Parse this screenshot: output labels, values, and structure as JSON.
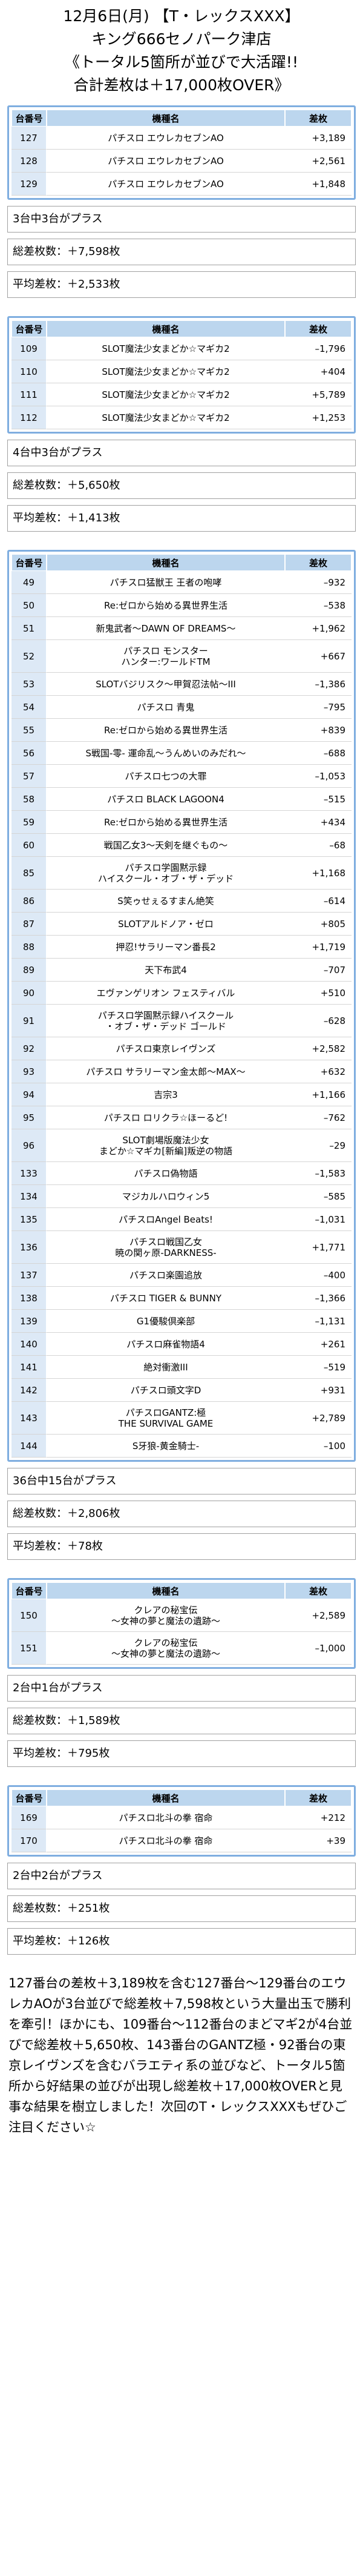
{
  "header": {
    "line1": "12月6日(月) 【T・レックスXXX】",
    "line2": "キング666セノパーク津店",
    "line3": "《トータル5箇所が並びで大活躍!!",
    "line4": "合計差枚は＋17,000枚OVER》"
  },
  "columns": {
    "num": "台番号",
    "name": "機種名",
    "diff": "差枚"
  },
  "sections": [
    {
      "rows": [
        {
          "num": "127",
          "name": "パチスロ エウレカセブンAO",
          "diff": "+3,189"
        },
        {
          "num": "128",
          "name": "パチスロ エウレカセブンAO",
          "diff": "+2,561"
        },
        {
          "num": "129",
          "name": "パチスロ エウレカセブンAO",
          "diff": "+1,848"
        }
      ],
      "plus_count": "3台中3台がプラス",
      "total": "総差枚数：＋7,598枚",
      "average": "平均差枚：＋2,533枚"
    },
    {
      "rows": [
        {
          "num": "109",
          "name": "SLOT魔法少女まどか☆マギカ2",
          "diff": "–1,796"
        },
        {
          "num": "110",
          "name": "SLOT魔法少女まどか☆マギカ2",
          "diff": "+404"
        },
        {
          "num": "111",
          "name": "SLOT魔法少女まどか☆マギカ2",
          "diff": "+5,789"
        },
        {
          "num": "112",
          "name": "SLOT魔法少女まどか☆マギカ2",
          "diff": "+1,253"
        }
      ],
      "plus_count": "4台中3台がプラス",
      "total": "総差枚数：＋5,650枚",
      "average": "平均差枚：＋1,413枚"
    },
    {
      "rows": [
        {
          "num": "49",
          "name": "パチスロ猛獣王 王者の咆哮",
          "diff": "–932"
        },
        {
          "num": "50",
          "name": "Re:ゼロから始める異世界生活",
          "diff": "–538"
        },
        {
          "num": "51",
          "name": "新鬼武者〜DAWN OF DREAMS〜",
          "diff": "+1,962"
        },
        {
          "num": "52",
          "name": "パチスロ モンスター\nハンター:ワールドTM",
          "diff": "+667"
        },
        {
          "num": "53",
          "name": "SLOTバジリスク〜甲賀忍法帖〜III",
          "diff": "–1,386"
        },
        {
          "num": "54",
          "name": "パチスロ 青鬼",
          "diff": "–795"
        },
        {
          "num": "55",
          "name": "Re:ゼロから始める異世界生活",
          "diff": "+839"
        },
        {
          "num": "56",
          "name": "S戦国-零- 運命乱〜うんめいのみだれ〜",
          "diff": "–688"
        },
        {
          "num": "57",
          "name": "パチスロ七つの大罪",
          "diff": "–1,053"
        },
        {
          "num": "58",
          "name": "パチスロ BLACK LAGOON4",
          "diff": "–515"
        },
        {
          "num": "59",
          "name": "Re:ゼロから始める異世界生活",
          "diff": "+434"
        },
        {
          "num": "60",
          "name": "戦国乙女3〜天剣を継ぐもの〜",
          "diff": "–68"
        },
        {
          "num": "85",
          "name": "パチスロ学園黙示録\nハイスクール・オブ・ザ・デッド",
          "diff": "+1,168"
        },
        {
          "num": "86",
          "name": "S笑ゥせぇるすまん絶笑",
          "diff": "–614"
        },
        {
          "num": "87",
          "name": "SLOTアルドノア・ゼロ",
          "diff": "+805"
        },
        {
          "num": "88",
          "name": "押忍!サラリーマン番長2",
          "diff": "+1,719"
        },
        {
          "num": "89",
          "name": "天下布武4",
          "diff": "–707"
        },
        {
          "num": "90",
          "name": "エヴァンゲリオン フェスティバル",
          "diff": "+510"
        },
        {
          "num": "91",
          "name": "パチスロ学園黙示録ハイスクール\n・オブ・ザ・デッド ゴールド",
          "diff": "–628"
        },
        {
          "num": "92",
          "name": "パチスロ東京レイヴンズ",
          "diff": "+2,582"
        },
        {
          "num": "93",
          "name": "パチスロ サラリーマン金太郎〜MAX〜",
          "diff": "+632"
        },
        {
          "num": "94",
          "name": "吉宗3",
          "diff": "+1,166"
        },
        {
          "num": "95",
          "name": "パチスロ ロリクラ☆ほーるど!",
          "diff": "–762"
        },
        {
          "num": "96",
          "name": "SLOT劇場版魔法少女\nまどか☆マギカ[新編]叛逆の物語",
          "diff": "–29"
        },
        {
          "num": "133",
          "name": "パチスロ偽物語",
          "diff": "–1,583"
        },
        {
          "num": "134",
          "name": "マジカルハロウィン5",
          "diff": "–585"
        },
        {
          "num": "135",
          "name": "パチスロAngel Beats!",
          "diff": "–1,031"
        },
        {
          "num": "136",
          "name": "パチスロ戦国乙女\n暁の関ヶ原-DARKNESS-",
          "diff": "+1,771"
        },
        {
          "num": "137",
          "name": "パチスロ楽園追放",
          "diff": "–400"
        },
        {
          "num": "138",
          "name": "パチスロ TIGER & BUNNY",
          "diff": "–1,366"
        },
        {
          "num": "139",
          "name": "G1優駿倶楽部",
          "diff": "–1,131"
        },
        {
          "num": "140",
          "name": "パチスロ麻雀物語4",
          "diff": "+261"
        },
        {
          "num": "141",
          "name": "絶対衝激III",
          "diff": "–519"
        },
        {
          "num": "142",
          "name": "パチスロ頭文字D",
          "diff": "+931"
        },
        {
          "num": "143",
          "name": "パチスロGANTZ:極\nTHE SURVIVAL GAME",
          "diff": "+2,789"
        },
        {
          "num": "144",
          "name": "S牙狼-黄金騎士-",
          "diff": "–100"
        }
      ],
      "plus_count": "36台中15台がプラス",
      "total": "総差枚数：＋2,806枚",
      "average": "平均差枚：＋78枚"
    },
    {
      "rows": [
        {
          "num": "150",
          "name": "クレアの秘宝伝\n〜女神の夢と魔法の遺跡〜",
          "diff": "+2,589"
        },
        {
          "num": "151",
          "name": "クレアの秘宝伝\n〜女神の夢と魔法の遺跡〜",
          "diff": "–1,000"
        }
      ],
      "plus_count": "2台中1台がプラス",
      "total": "総差枚数：＋1,589枚",
      "average": "平均差枚：＋795枚"
    },
    {
      "rows": [
        {
          "num": "169",
          "name": "パチスロ北斗の拳 宿命",
          "diff": "+212"
        },
        {
          "num": "170",
          "name": "パチスロ北斗の拳 宿命",
          "diff": "+39"
        }
      ],
      "plus_count": "2台中2台がプラス",
      "total": "総差枚数：＋251枚",
      "average": "平均差枚：＋126枚"
    }
  ],
  "summary": "127番台の差枚＋3,189枚を含む127番台〜129番台のエウレカAOが3台並びで総差枚＋7,598枚という大量出玉で勝利を牽引！ほかにも、109番台〜112番台のまどマギ2が4台並びで総差枚＋5,650枚、143番台のGANTZ極・92番台の東京レイヴンズを含むバラエティ系の並びなど、トータル5箇所から好結果の並びが出現し総差枚＋17,000枚OVERと見事な結果を樹立しました！次回のT・レックスXXXもぜひご注目ください☆"
}
